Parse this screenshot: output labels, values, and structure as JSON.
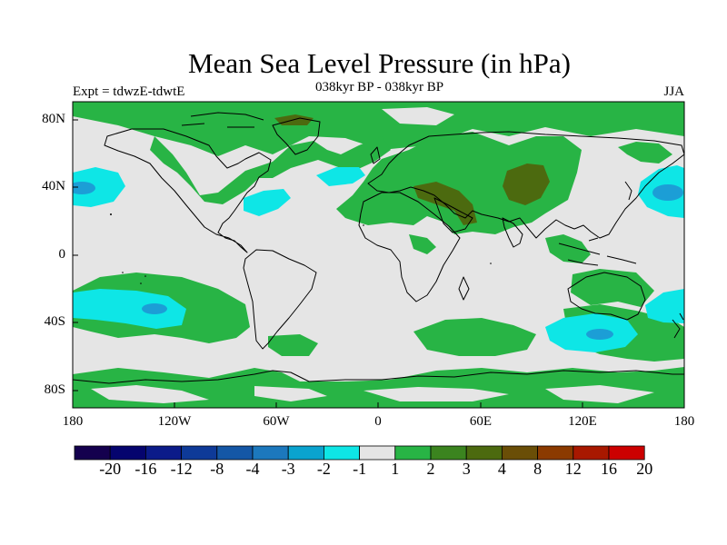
{
  "title": "Mean Sea Level Pressure (in hPa)",
  "subtitle_left": "Expt = tdwzE-tdwtE",
  "subtitle_center": "038kyr BP - 038kyr BP",
  "subtitle_right": "JJA",
  "axes": {
    "lat_labels": [
      "80N",
      "40N",
      "0",
      "40S",
      "80S"
    ],
    "lon_labels": [
      "180",
      "120W",
      "60W",
      "0",
      "60E",
      "120E",
      "180"
    ]
  },
  "colorbar": {
    "labels": [
      "-20",
      "-16",
      "-12",
      "-8",
      "-4",
      "-3",
      "-2",
      "-1",
      "1",
      "2",
      "3",
      "4",
      "8",
      "12",
      "16",
      "20"
    ],
    "colors": [
      "#14004e",
      "#05046e",
      "#0b1b89",
      "#0e3a98",
      "#1457a6",
      "#1c78bd",
      "#0aa3cf",
      "#0ee6e6",
      "#e5e5e5",
      "#28b445",
      "#3b841f",
      "#4c6a0f",
      "#6a4e07",
      "#8b3a00",
      "#a81800",
      "#cc0000"
    ]
  }
}
